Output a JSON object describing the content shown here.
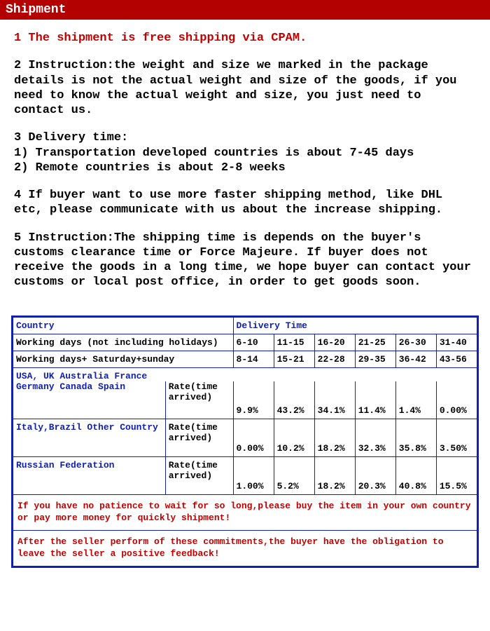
{
  "header": {
    "title": "Shipment"
  },
  "paragraphs": {
    "p1": "1 The shipment is free shipping via CPAM.",
    "p2": "2 Instruction:the weight and size we marked in the package details is not the actual weight and size of the goods, if you need to know the actual weight and size, you just need to contact us.",
    "p3": "3 Delivery time:\n1) Transportation developed countries is about 7-45 days\n2) Remote countries is about 2-8 weeks",
    "p4": "4 If buyer want to use more faster shipping method, like DHL  etc, please communicate with us about the increase shipping.",
    "p5": "5 Instruction:The shipping time is depends on the buyer's customs clearance time or Force Majeure. If buyer does not receive the goods in a long time, we hope buyer can contact your customs or local post office, in order to get goods soon."
  },
  "table": {
    "head": {
      "country": "Country",
      "delivery_time": "Delivery Time"
    },
    "working_days_label": "Working days (not including holidays)",
    "working_days_vals": [
      "6-10",
      "11-15",
      "16-20",
      "21-25",
      "26-30",
      "31-40"
    ],
    "working_sat_label": "Working days+ Saturday+sunday",
    "working_sat_vals": [
      "8-14",
      "15-21",
      "22-28",
      "29-35",
      "36-42",
      "43-56"
    ],
    "usa_row": "USA, UK Australia France",
    "rate_label": "Rate(time arrived)",
    "groups": [
      {
        "country": "Germany Canada Spain",
        "vals": [
          "9.9%",
          "43.2%",
          "34.1%",
          "11.4%",
          "1.4%",
          "0.00%"
        ]
      },
      {
        "country": "Italy,Brazil Other Country",
        "vals": [
          "0.00%",
          "10.2%",
          "18.2%",
          "32.3%",
          "35.8%",
          "3.50%"
        ]
      },
      {
        "country": "Russian Federation",
        "vals": [
          "1.00%",
          "5.2%",
          "18.2%",
          "20.3%",
          "40.8%",
          "15.5%"
        ]
      }
    ],
    "footer1": "If you have no patience to wait for so long,please buy the item in your own country or pay more money for quickly shipment!",
    "footer2": "After the seller perform of these commitments,the buyer have the obligation to leave the seller a positive feedback!"
  },
  "colors": {
    "header_bg": "#b30000",
    "header_fg": "#ffffff",
    "red_text": "#c20000",
    "black_text": "#000000",
    "blue": "#1020b0",
    "bg": "#ffffff"
  }
}
